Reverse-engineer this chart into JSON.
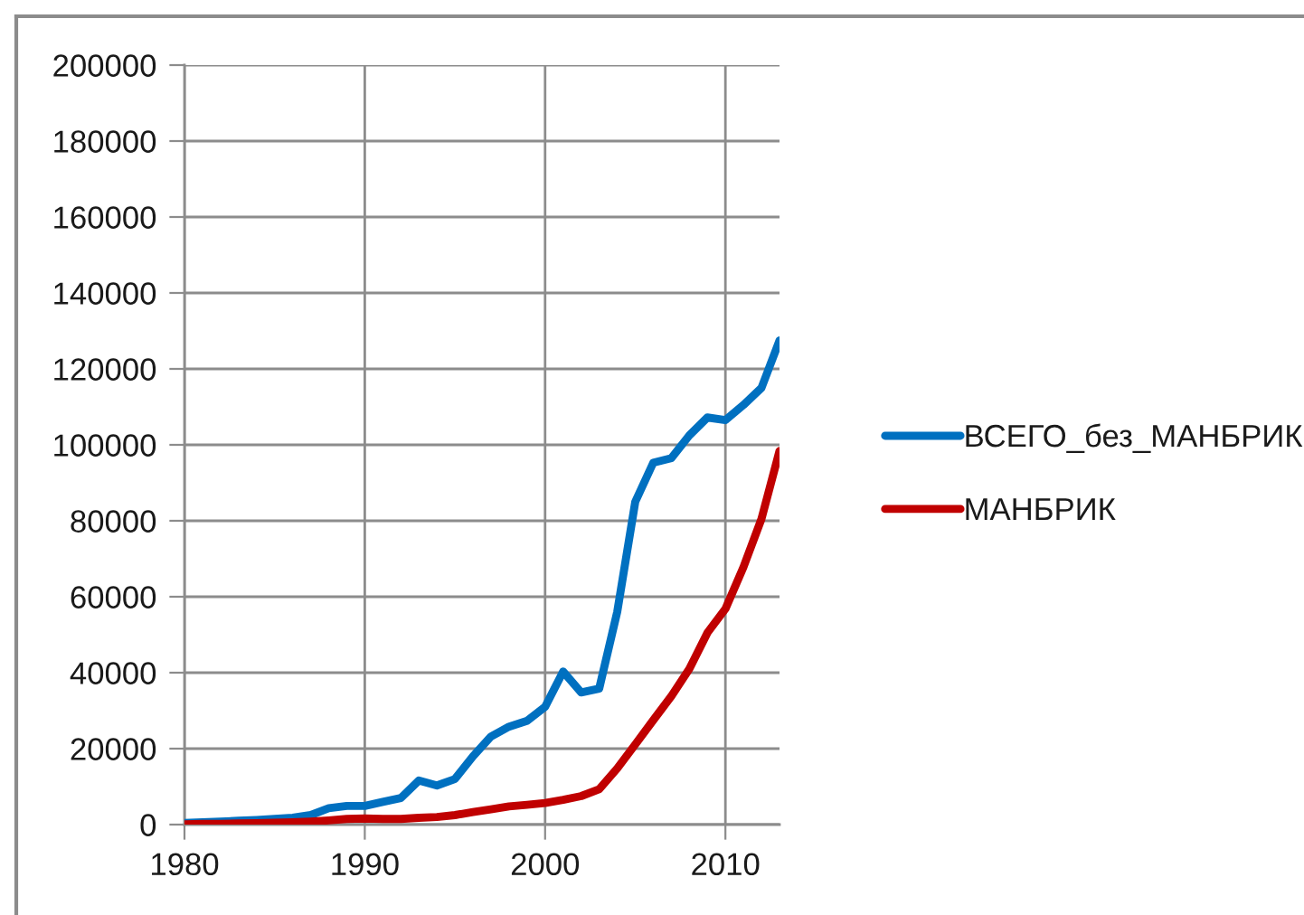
{
  "chart_data": {
    "type": "line",
    "x": [
      1980,
      1981,
      1982,
      1983,
      1984,
      1985,
      1986,
      1987,
      1988,
      1989,
      1990,
      1991,
      1992,
      1993,
      1994,
      1995,
      1996,
      1997,
      1998,
      1999,
      2000,
      2001,
      2002,
      2003,
      2004,
      2005,
      2006,
      2007,
      2008,
      2009,
      2010,
      2011,
      2012,
      2013
    ],
    "series": [
      {
        "name": "ВСЕГО_без_МАНБРИК",
        "color": "#0070c0",
        "values": [
          400,
          600,
          800,
          1000,
          1200,
          1500,
          1800,
          2500,
          4300,
          4900,
          4900,
          6000,
          7000,
          11600,
          10300,
          12000,
          18000,
          23200,
          25800,
          27300,
          31000,
          40300,
          34800,
          35800,
          56000,
          85000,
          95300,
          96500,
          102500,
          107200,
          106500,
          110500,
          115000,
          127500
        ]
      },
      {
        "name": "МАНБРИК",
        "color": "#c00000",
        "values": [
          100,
          200,
          200,
          300,
          400,
          500,
          600,
          800,
          1100,
          1500,
          1600,
          1500,
          1500,
          1800,
          2000,
          2500,
          3300,
          4000,
          4800,
          5200,
          5700,
          6500,
          7500,
          9300,
          14800,
          21100,
          27500,
          33800,
          41000,
          50500,
          56800,
          67800,
          80500,
          98400
        ]
      }
    ],
    "xlim": [
      1980,
      2013
    ],
    "xticks": [
      1980,
      1990,
      2000,
      2010
    ],
    "ylim": [
      0,
      200000
    ],
    "yticks": [
      0,
      20000,
      40000,
      60000,
      80000,
      100000,
      120000,
      140000,
      160000,
      180000,
      200000
    ],
    "grid": true,
    "legend": "right",
    "line_style": "solid"
  }
}
